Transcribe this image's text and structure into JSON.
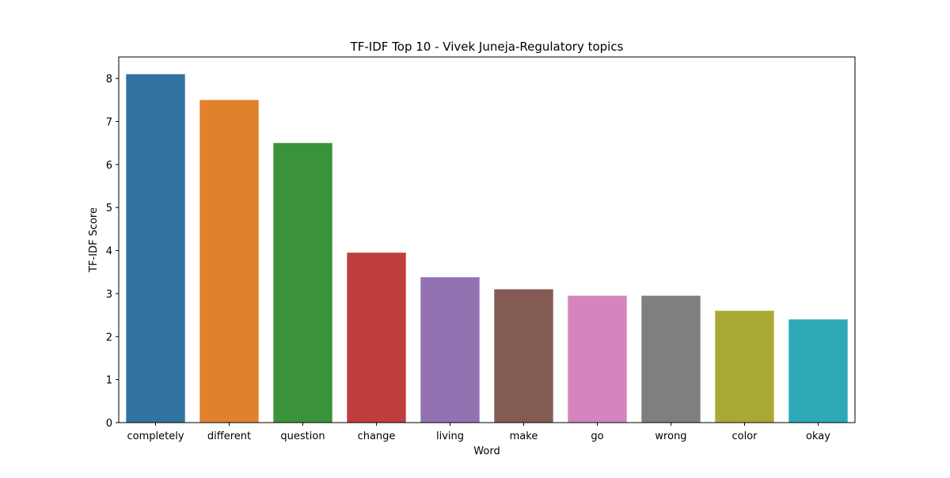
{
  "chart_data": {
    "type": "bar",
    "title": "TF-IDF Top 10 - Vivek Juneja-Regulatory topics",
    "xlabel": "Word",
    "ylabel": "TF-IDF Score",
    "categories": [
      "completely",
      "different",
      "question",
      "change",
      "living",
      "make",
      "go",
      "wrong",
      "color",
      "okay"
    ],
    "values": [
      8.1,
      7.5,
      6.5,
      3.95,
      3.38,
      3.1,
      2.95,
      2.95,
      2.6,
      2.4
    ],
    "colors": [
      "#3274a1",
      "#e1812c",
      "#3a923a",
      "#c03d3e",
      "#9372b2",
      "#845b53",
      "#d684bd",
      "#7f7f7f",
      "#a9aa35",
      "#2ea9b8"
    ],
    "ylim": [
      0,
      8.5
    ],
    "yticks": [
      0,
      1,
      2,
      3,
      4,
      5,
      6,
      7,
      8
    ],
    "grid": false,
    "legend": "none"
  }
}
